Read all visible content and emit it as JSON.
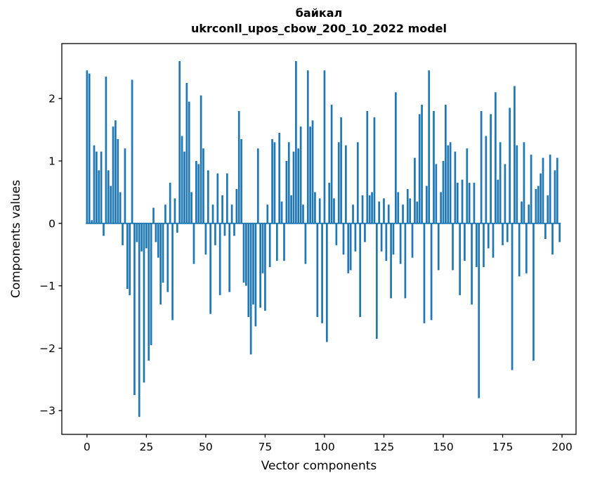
{
  "figure": {
    "title_line1": "байкал",
    "title_line2": "ukrconll_upos_cbow_200_10_2022 model",
    "xlabel": "Vector components",
    "ylabel": "Components values"
  },
  "chart_data": {
    "type": "bar",
    "title": "байкал",
    "subtitle": "ukrconll_upos_cbow_200_10_2022 model",
    "xlabel": "Vector components",
    "ylabel": "Components values",
    "x_description": "vector component index, 0 to 199",
    "n_bars": 200,
    "xticks": [
      0,
      25,
      50,
      75,
      100,
      125,
      150,
      175,
      200
    ],
    "yticks": [
      -3,
      -2,
      -1,
      0,
      1,
      2
    ],
    "xlim": [
      -10.6,
      205.9
    ],
    "ylim": [
      -3.38,
      2.88
    ],
    "bar_color": "#1f77b4",
    "zero_line_color": "#1f77b4",
    "bar_width": 0.8,
    "grid": false,
    "legend": false,
    "values": [
      2.45,
      2.4,
      0.05,
      1.25,
      1.15,
      0.85,
      1.15,
      -0.2,
      2.35,
      0.85,
      0.6,
      1.55,
      1.65,
      1.35,
      0.5,
      -0.35,
      1.2,
      -1.05,
      -1.15,
      2.3,
      -2.75,
      -0.3,
      -3.1,
      -0.45,
      -2.55,
      -0.4,
      -2.2,
      -1.95,
      0.25,
      -0.3,
      -0.55,
      -1.3,
      -0.95,
      0.3,
      -1.1,
      0.65,
      -1.55,
      0.4,
      -0.15,
      2.6,
      1.4,
      1.15,
      2.25,
      1.95,
      0.5,
      -0.65,
      1.0,
      0.95,
      2.05,
      1.2,
      -0.5,
      0.85,
      -1.45,
      0.3,
      -0.35,
      0.8,
      -1.15,
      0.45,
      -0.2,
      0.8,
      -1.1,
      0.3,
      -0.2,
      0.55,
      1.8,
      1.35,
      -0.95,
      -1.0,
      -1.5,
      -2.1,
      -1.3,
      -1.65,
      1.2,
      -1.35,
      -0.8,
      -1.4,
      0.3,
      -0.7,
      1.35,
      1.3,
      -0.6,
      1.45,
      0.35,
      -0.6,
      1.0,
      1.3,
      0.45,
      1.15,
      2.6,
      1.2,
      1.55,
      0.3,
      -0.65,
      2.45,
      1.55,
      1.65,
      0.5,
      -1.5,
      0.4,
      -1.6,
      2.45,
      -1.9,
      0.65,
      1.9,
      0.4,
      -0.35,
      1.3,
      1.7,
      -0.5,
      1.25,
      -0.8,
      -0.75,
      0.3,
      -0.45,
      1.3,
      -1.5,
      0.45,
      -0.3,
      1.8,
      0.45,
      0.5,
      1.7,
      -1.85,
      0.35,
      -0.45,
      0.4,
      -0.6,
      0.3,
      -1.2,
      -0.5,
      2.1,
      0.5,
      -0.65,
      0.3,
      -1.2,
      0.55,
      0.4,
      -0.55,
      1.05,
      0.35,
      1.75,
      1.9,
      -1.6,
      0.6,
      2.45,
      -1.55,
      1.8,
      0.95,
      -0.75,
      0.5,
      1.0,
      1.9,
      1.25,
      1.3,
      -0.75,
      1.15,
      0.65,
      -1.15,
      0.7,
      -0.6,
      1.2,
      0.65,
      -1.3,
      0.65,
      -0.7,
      -2.8,
      1.8,
      -0.7,
      1.4,
      -0.4,
      1.75,
      -0.55,
      2.1,
      0.7,
      1.3,
      -0.35,
      0.95,
      -0.3,
      1.85,
      -2.35,
      2.2,
      1.25,
      -0.85,
      0.35,
      1.3,
      -0.8,
      0.3,
      1.1,
      -2.2,
      0.55,
      0.6,
      0.8,
      1.05,
      -0.25,
      0.45,
      1.1,
      -0.5,
      0.85,
      1.05,
      -0.3
    ]
  }
}
